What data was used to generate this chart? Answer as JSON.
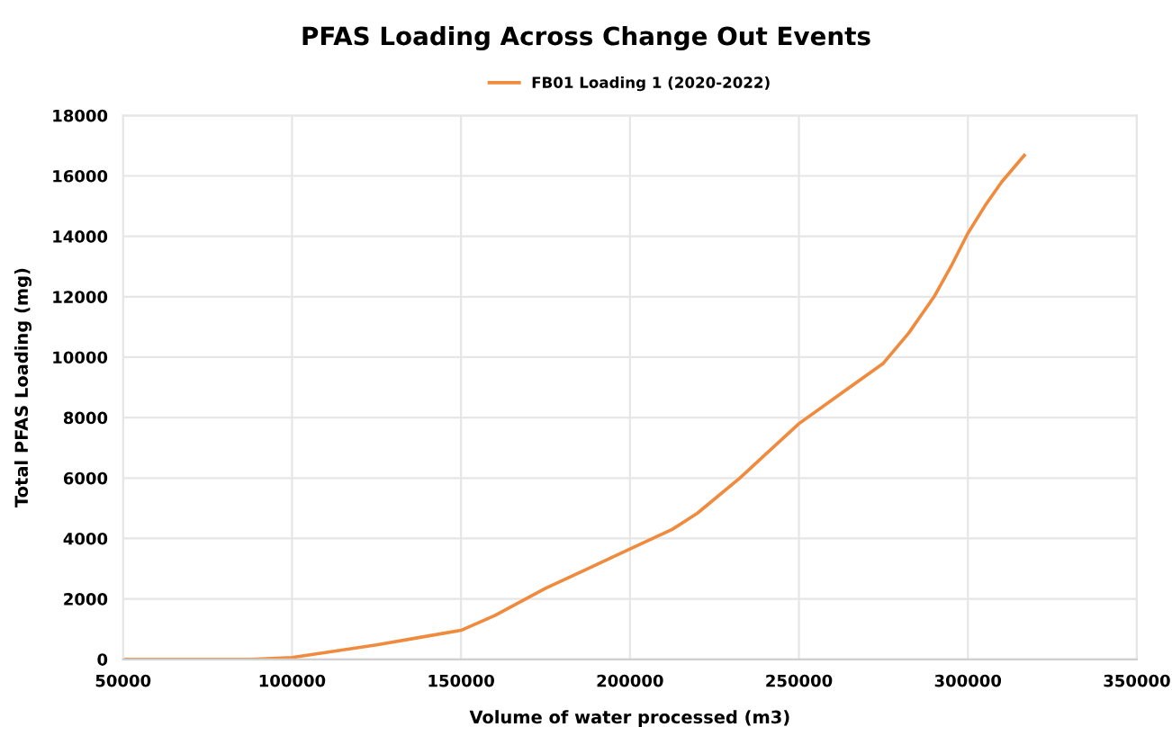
{
  "chart_data": {
    "type": "line",
    "title": "PFAS Loading Across Change Out Events",
    "xlabel": "Volume of water processed (m3)",
    "ylabel": "Total PFAS Loading (mg)",
    "xlim": [
      50000,
      350000
    ],
    "xticks": [
      50000,
      100000,
      150000,
      200000,
      250000,
      300000,
      350000
    ],
    "ylim": [
      0,
      18000
    ],
    "yticks": [
      0,
      2000,
      4000,
      6000,
      8000,
      10000,
      12000,
      14000,
      16000,
      18000
    ],
    "grid": true,
    "legend": "top",
    "marker": "none",
    "line_style": "solid",
    "series": [
      {
        "name": "FB01 Loading 1 (2020-2022)",
        "color": "#f08a3c",
        "x": [
          50000,
          70000,
          88000,
          100000,
          112500,
          125000,
          137500,
          150000,
          160000,
          175000,
          187500,
          200000,
          212500,
          220000,
          232500,
          250000,
          262500,
          275000,
          282500,
          290000,
          295000,
          300000,
          305000,
          310000,
          316700
        ],
        "values": [
          0,
          0,
          0,
          60,
          270,
          480,
          720,
          960,
          1450,
          2350,
          3000,
          3650,
          4300,
          4840,
          6000,
          7800,
          8800,
          9800,
          10800,
          12000,
          13000,
          14100,
          15000,
          15800,
          16680
        ]
      }
    ]
  }
}
